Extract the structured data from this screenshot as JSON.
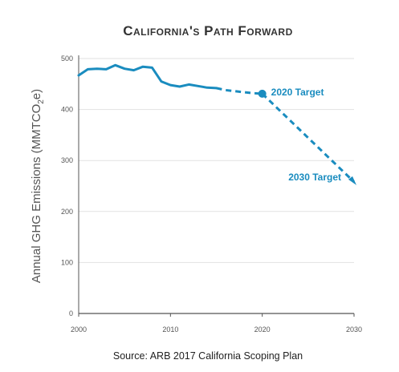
{
  "chart_data": {
    "type": "line",
    "title": "California's Path Forward",
    "ylabel": "Annual GHG Emissions (MMTCO",
    "ylabel_sub": "2",
    "ylabel_end": "e)",
    "xlabel": "",
    "source": "Source: ARB 2017 California Scoping Plan",
    "xlim": [
      2000,
      2030
    ],
    "ylim": [
      0,
      500
    ],
    "x_ticks": [
      "2000",
      "2010",
      "2020",
      "2030"
    ],
    "y_ticks": [
      "0",
      "100",
      "200",
      "300",
      "400",
      "500"
    ],
    "grid": true,
    "series": [
      {
        "style": "solid",
        "x": [
          2000,
          2001,
          2002,
          2003,
          2004,
          2005,
          2006,
          2007,
          2008,
          2009,
          2010,
          2011,
          2012,
          2013,
          2014,
          2015
        ],
        "values": [
          467,
          479,
          480,
          479,
          487,
          480,
          477,
          484,
          482,
          455,
          448,
          445,
          449,
          446,
          443,
          442
        ]
      },
      {
        "style": "dashed",
        "x": [
          2015,
          2016,
          2017,
          2018,
          2019,
          2020
        ],
        "values": [
          442,
          438,
          436,
          434,
          432,
          431
        ]
      },
      {
        "style": "dashed",
        "x": [
          2020,
          2030
        ],
        "values": [
          431,
          258
        ]
      }
    ],
    "annotations": [
      {
        "label": "2020 Target",
        "x": 2020,
        "y": 431,
        "marker": "dot"
      },
      {
        "label": "2030 Target",
        "x": 2030,
        "y": 258,
        "marker": "arrow"
      }
    ],
    "colors": {
      "line": "#1a8cbf",
      "axis_text": "#555555",
      "grid": "#e2e2e2",
      "title": "#333333",
      "annotation": "#1a8cbf",
      "axis_line": "#555555"
    }
  }
}
